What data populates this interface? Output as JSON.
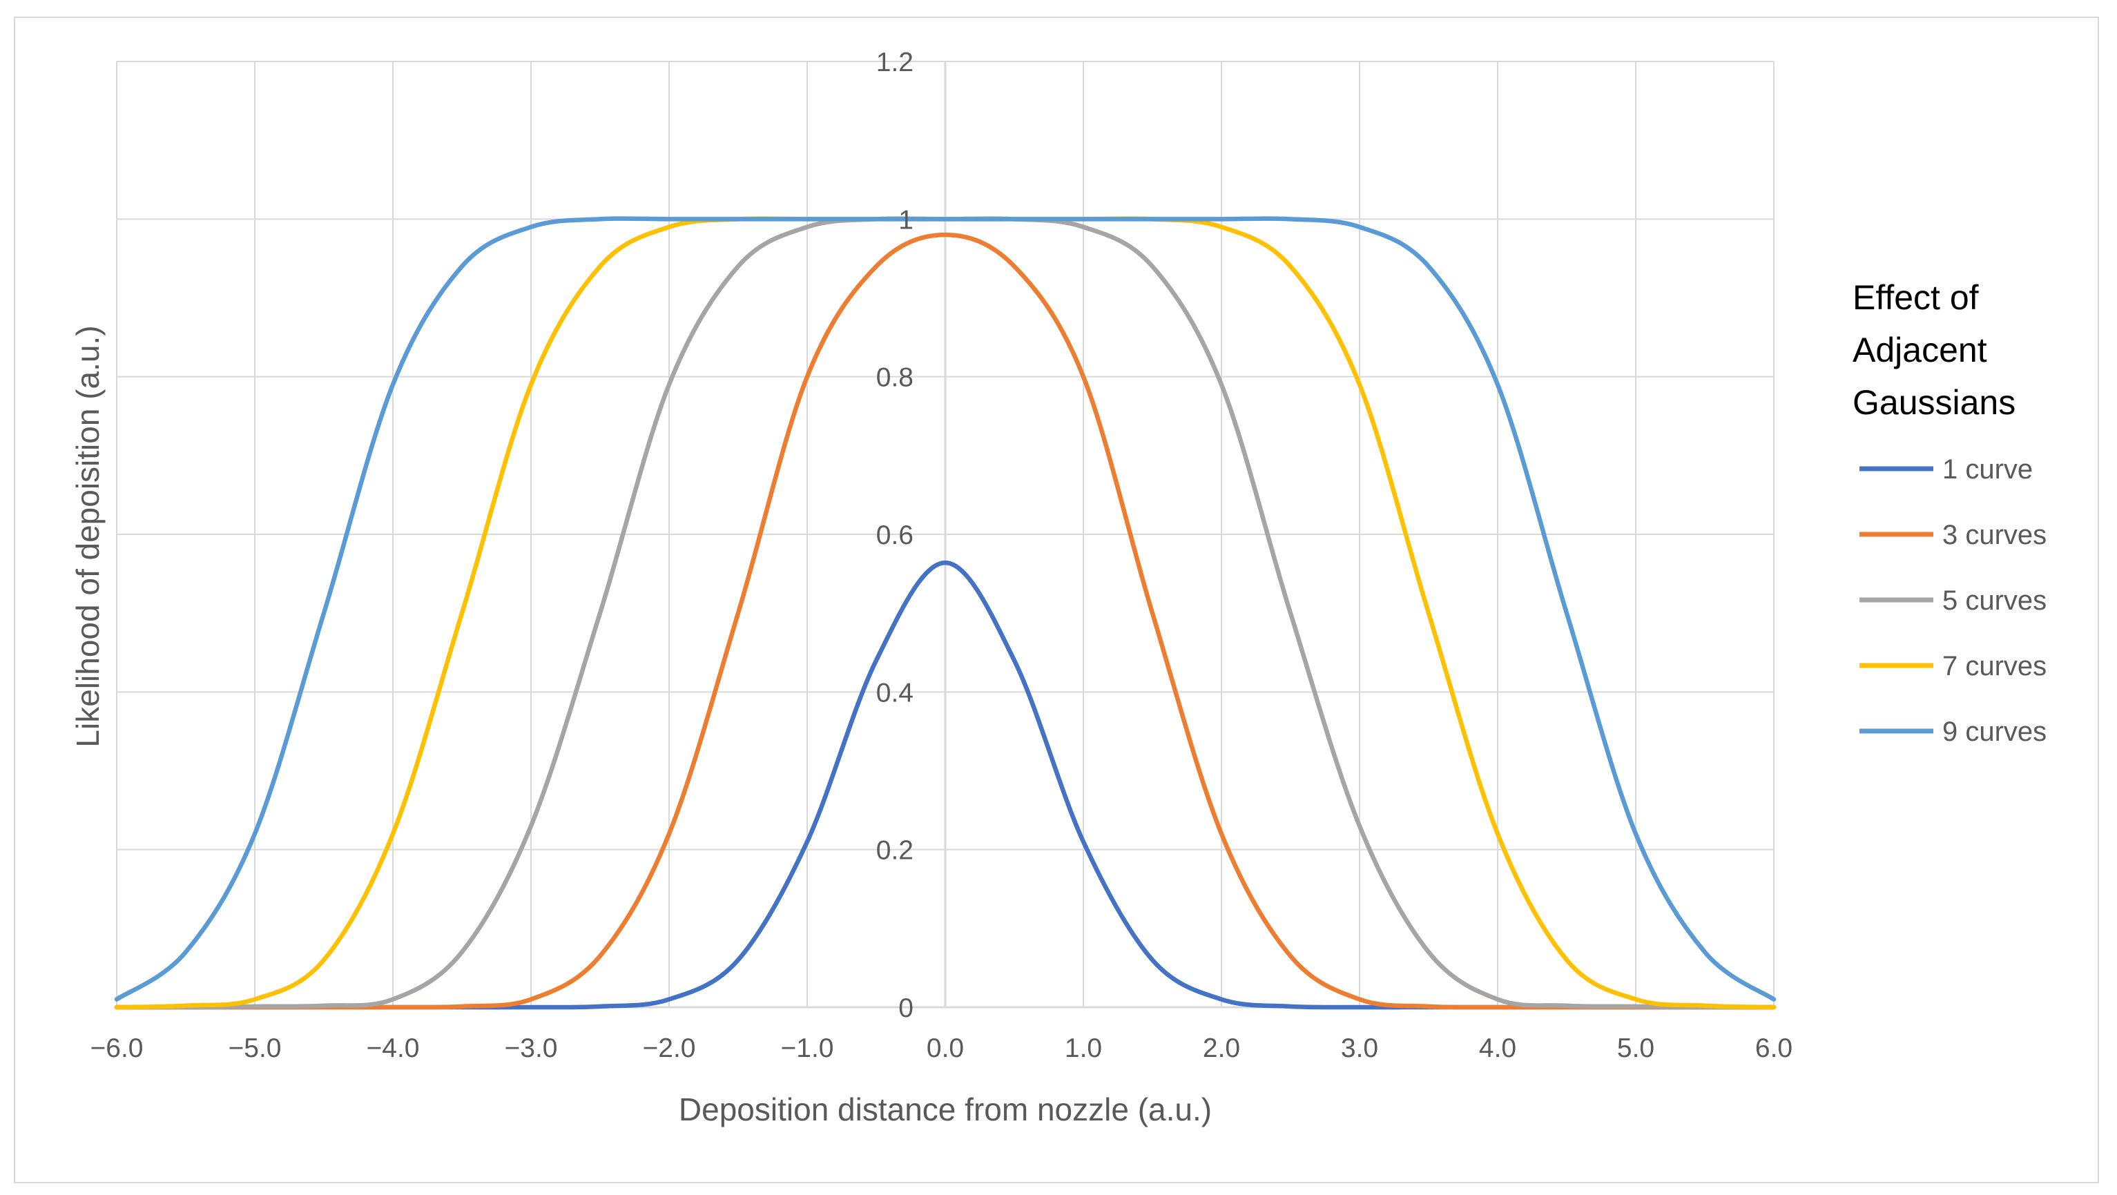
{
  "chart_data": {
    "type": "line",
    "title": "",
    "xlabel": "Deposition distance from nozzle (a.u.)",
    "ylabel": "Likelihood of depoisition (a.u.)",
    "xlim": [
      -6,
      6
    ],
    "ylim": [
      0,
      1.2
    ],
    "x_ticks": [
      "−6.0",
      "−5.0",
      "−4.0",
      "−3.0",
      "−2.0",
      "−1.0",
      "0.0",
      "1.0",
      "2.0",
      "3.0",
      "4.0",
      "5.0",
      "6.0"
    ],
    "y_ticks": [
      "0",
      "0.2",
      "0.4",
      "0.6",
      "0.8",
      "1",
      "1.2"
    ],
    "grid": true,
    "legend": {
      "title_lines": [
        "Effect of",
        "Adjacent",
        "Gaussians"
      ],
      "position": "right"
    },
    "x": [
      -6.0,
      -5.5,
      -5.0,
      -4.5,
      -4.0,
      -3.5,
      -3.0,
      -2.5,
      -2.0,
      -1.5,
      -1.0,
      -0.5,
      0.0,
      0.5,
      1.0,
      1.5,
      2.0,
      2.5,
      3.0,
      3.5,
      4.0,
      4.5,
      5.0,
      5.5,
      6.0
    ],
    "series": [
      {
        "name": "1 curve",
        "color": "#4472C4",
        "values": [
          0,
          0,
          0,
          0,
          0,
          0,
          0,
          0.001,
          0.01,
          0.06,
          0.21,
          0.44,
          0.564,
          0.44,
          0.21,
          0.06,
          0.01,
          0.001,
          0,
          0,
          0,
          0,
          0,
          0,
          0
        ]
      },
      {
        "name": "3 curves",
        "color": "#ED7D31",
        "values": [
          0,
          0,
          0,
          0,
          0,
          0.001,
          0.01,
          0.065,
          0.22,
          0.5,
          0.8,
          0.94,
          0.98,
          0.94,
          0.8,
          0.5,
          0.22,
          0.065,
          0.01,
          0.001,
          0,
          0,
          0,
          0,
          0
        ]
      },
      {
        "name": "5 curves",
        "color": "#A5A5A5",
        "values": [
          0,
          0,
          0.001,
          0.002,
          0.01,
          0.07,
          0.23,
          0.5,
          0.79,
          0.94,
          0.99,
          1.0,
          1.0,
          1.0,
          0.99,
          0.94,
          0.79,
          0.5,
          0.23,
          0.07,
          0.01,
          0.002,
          0.001,
          0,
          0
        ]
      },
      {
        "name": "7 curves",
        "color": "#FFC000",
        "values": [
          0,
          0.002,
          0.01,
          0.06,
          0.22,
          0.5,
          0.79,
          0.94,
          0.99,
          1.0,
          1.0,
          1.0,
          1.0,
          1.0,
          1.0,
          1.0,
          0.99,
          0.94,
          0.79,
          0.5,
          0.22,
          0.06,
          0.01,
          0.002,
          0
        ]
      },
      {
        "name": "9 curves",
        "color": "#5B9BD5",
        "values": [
          0.01,
          0.07,
          0.22,
          0.5,
          0.79,
          0.94,
          0.99,
          1.0,
          1.0,
          1.0,
          1.0,
          1.0,
          1.0,
          1.0,
          1.0,
          1.0,
          1.0,
          1.0,
          0.99,
          0.94,
          0.79,
          0.5,
          0.22,
          0.07,
          0.01
        ]
      }
    ]
  }
}
